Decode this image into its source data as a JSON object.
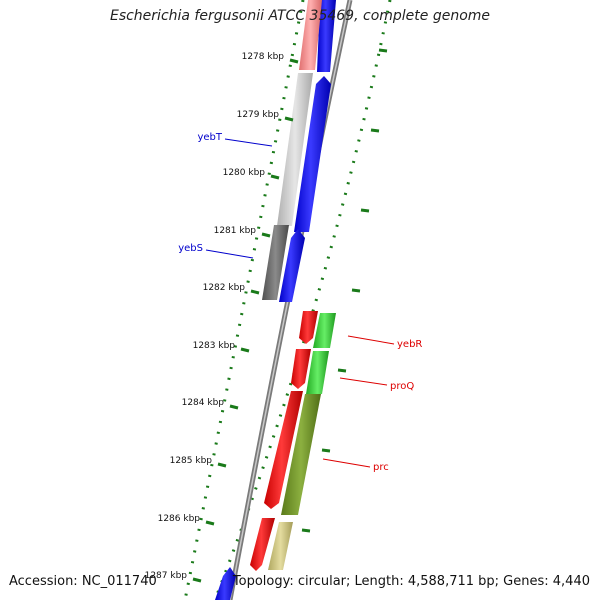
{
  "title": "Escherichia fergusonii ATCC 35469, complete genome",
  "footer": {
    "accession": "Accession: NC_011740",
    "topology": "Topology: circular; Length: 4,588,711 bp; Genes: 4,440"
  },
  "colors": {
    "backbone": "#888888",
    "forward_strand": "#0000ff",
    "reverse_strand": "#ff0000",
    "label_blue": "#0000cc",
    "label_red": "#dd0000",
    "tick": "#1a7a1a",
    "gene_green": "#33cc33",
    "gene_olive": "#6b8e23",
    "gene_khaki": "#c8c080",
    "gene_gray_light": "#c8c8c8",
    "gene_gray_dark": "#666666",
    "gene_pink": "#f08080"
  },
  "kbp_labels": [
    "1278 kbp",
    "1279 kbp",
    "1280 kbp",
    "1281 kbp",
    "1282 kbp",
    "1283 kbp",
    "1284 kbp",
    "1285 kbp",
    "1286 kbp",
    "1287 kbp"
  ],
  "gene_labels": [
    {
      "name": "yebT",
      "color": "blue"
    },
    {
      "name": "yebS",
      "color": "blue"
    },
    {
      "name": "yebR",
      "color": "red"
    },
    {
      "name": "proQ",
      "color": "red"
    },
    {
      "name": "prc",
      "color": "red"
    }
  ]
}
